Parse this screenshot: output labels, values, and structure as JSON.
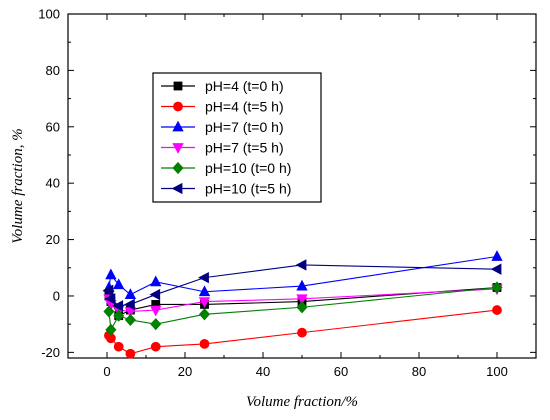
{
  "chart_data": {
    "type": "line",
    "title": "",
    "xlabel": "Volume fraction/%",
    "ylabel": "Volume fraction, %",
    "xlim": [
      -10,
      110
    ],
    "ylim": [
      -22,
      100
    ],
    "x_ticks": [
      0,
      20,
      40,
      60,
      80,
      100
    ],
    "y_ticks": [
      -20,
      0,
      20,
      40,
      60,
      80,
      100
    ],
    "x_tick_labels": [
      "0",
      "20",
      "40",
      "60",
      "80",
      "100"
    ],
    "y_tick_labels": [
      "-20",
      "0",
      "20",
      "40",
      "60",
      "80",
      "100"
    ],
    "grid": false,
    "legend_position": "upper-left",
    "series": [
      {
        "name": "pH=4 (t=0 h)",
        "color": "#000000",
        "marker": "square",
        "x": [
          0.5,
          1,
          3,
          6,
          12.5,
          25,
          50,
          100
        ],
        "y": [
          0,
          -2,
          -7,
          -5,
          -3,
          -3,
          -2,
          3
        ]
      },
      {
        "name": "pH=4 (t=5 h)",
        "color": "#ff0000",
        "marker": "circle",
        "x": [
          0.5,
          1,
          3,
          6,
          12.5,
          25,
          50,
          100
        ],
        "y": [
          -14,
          -15,
          -18,
          -20.5,
          -18,
          -17,
          -13,
          -5
        ]
      },
      {
        "name": "pH=7 (t=0 h)",
        "color": "#0000ff",
        "marker": "triangle-up",
        "x": [
          0.5,
          1,
          3,
          6,
          12.5,
          25,
          50,
          100
        ],
        "y": [
          3,
          7.5,
          4,
          0.5,
          5,
          1.5,
          3.5,
          14
        ]
      },
      {
        "name": "pH=7 (t=5 h)",
        "color": "#ff00ff",
        "marker": "triangle-down",
        "x": [
          0.5,
          1,
          3,
          6,
          12.5,
          25,
          50,
          100
        ],
        "y": [
          -1,
          -3,
          -5,
          -5.5,
          -5,
          -2,
          -1,
          2.5
        ]
      },
      {
        "name": "pH=10 (t=0 h)",
        "color": "#008000",
        "marker": "diamond",
        "x": [
          0.5,
          1,
          3,
          6,
          12.5,
          25,
          50,
          100
        ],
        "y": [
          -5.5,
          -12,
          -7,
          -8.5,
          -10,
          -6.5,
          -4,
          3
        ]
      },
      {
        "name": "pH=10 (t=5 h)",
        "color": "#000080",
        "marker": "triangle-left",
        "x": [
          0.5,
          1,
          3,
          6,
          12.5,
          25,
          50,
          100
        ],
        "y": [
          2,
          -1,
          -3.5,
          -3,
          0.5,
          6.5,
          11,
          9.5
        ]
      }
    ]
  }
}
